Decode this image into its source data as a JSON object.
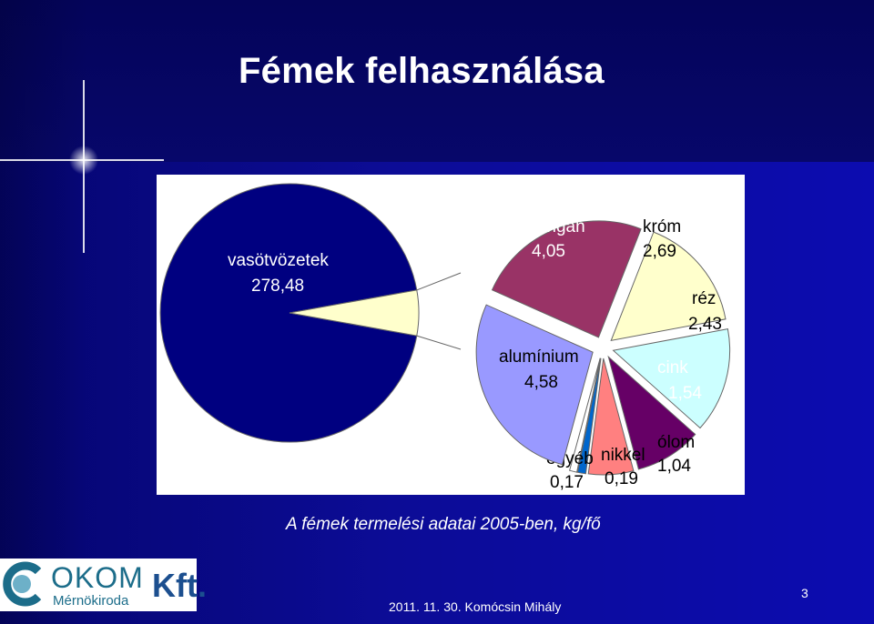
{
  "slide": {
    "title": "Fémek felhasználása",
    "subtitle": "A fémek termelési adatai 2005-ben, kg/fő",
    "footer": "2011. 11. 30.  Komócsin Mihály",
    "page_number": "3"
  },
  "logo": {
    "name": "OKOM",
    "suffix": "Kft.",
    "subtitle": "Mérnökiroda"
  },
  "colors": {
    "background": "#0a0a78",
    "big_pie": "#000080",
    "highlight_slice": "#ffffcc",
    "mangan": "#993366",
    "krom": "#ffffcc",
    "rez": "#ccffff",
    "cink": "#660066",
    "olom": "#ff8080",
    "nikkel": "#0066cc",
    "egyeb": "#ffffff",
    "aluminium": "#9999ff"
  },
  "chart_data": {
    "type": "pie",
    "title": "",
    "main_slice": {
      "label": "vasötvözetek",
      "value_text": "278,48",
      "value": 278.48
    },
    "other_label": "",
    "breakdown": [
      {
        "label": "mangán",
        "value_text": "4,05",
        "value": 4.05,
        "color": "#993366"
      },
      {
        "label": "króm",
        "value_text": "2,69",
        "value": 2.69,
        "color": "#ffffcc"
      },
      {
        "label": "réz",
        "value_text": "2,43",
        "value": 2.43,
        "color": "#ccffff"
      },
      {
        "label": "cink",
        "value_text": "1,54",
        "value": 1.54,
        "color": "#660066"
      },
      {
        "label": "ólom",
        "value_text": "1,04",
        "value": 1.04,
        "color": "#ff8080"
      },
      {
        "label": "nikkel",
        "value_text": "0,19",
        "value": 0.19,
        "color": "#0066cc"
      },
      {
        "label": "egyéb",
        "value_text": "0,17",
        "value": 0.17,
        "color": "#ffffff"
      },
      {
        "label": "alumínium",
        "value_text": "4,58",
        "value": 4.58,
        "color": "#9999ff"
      }
    ],
    "legend": "none"
  }
}
